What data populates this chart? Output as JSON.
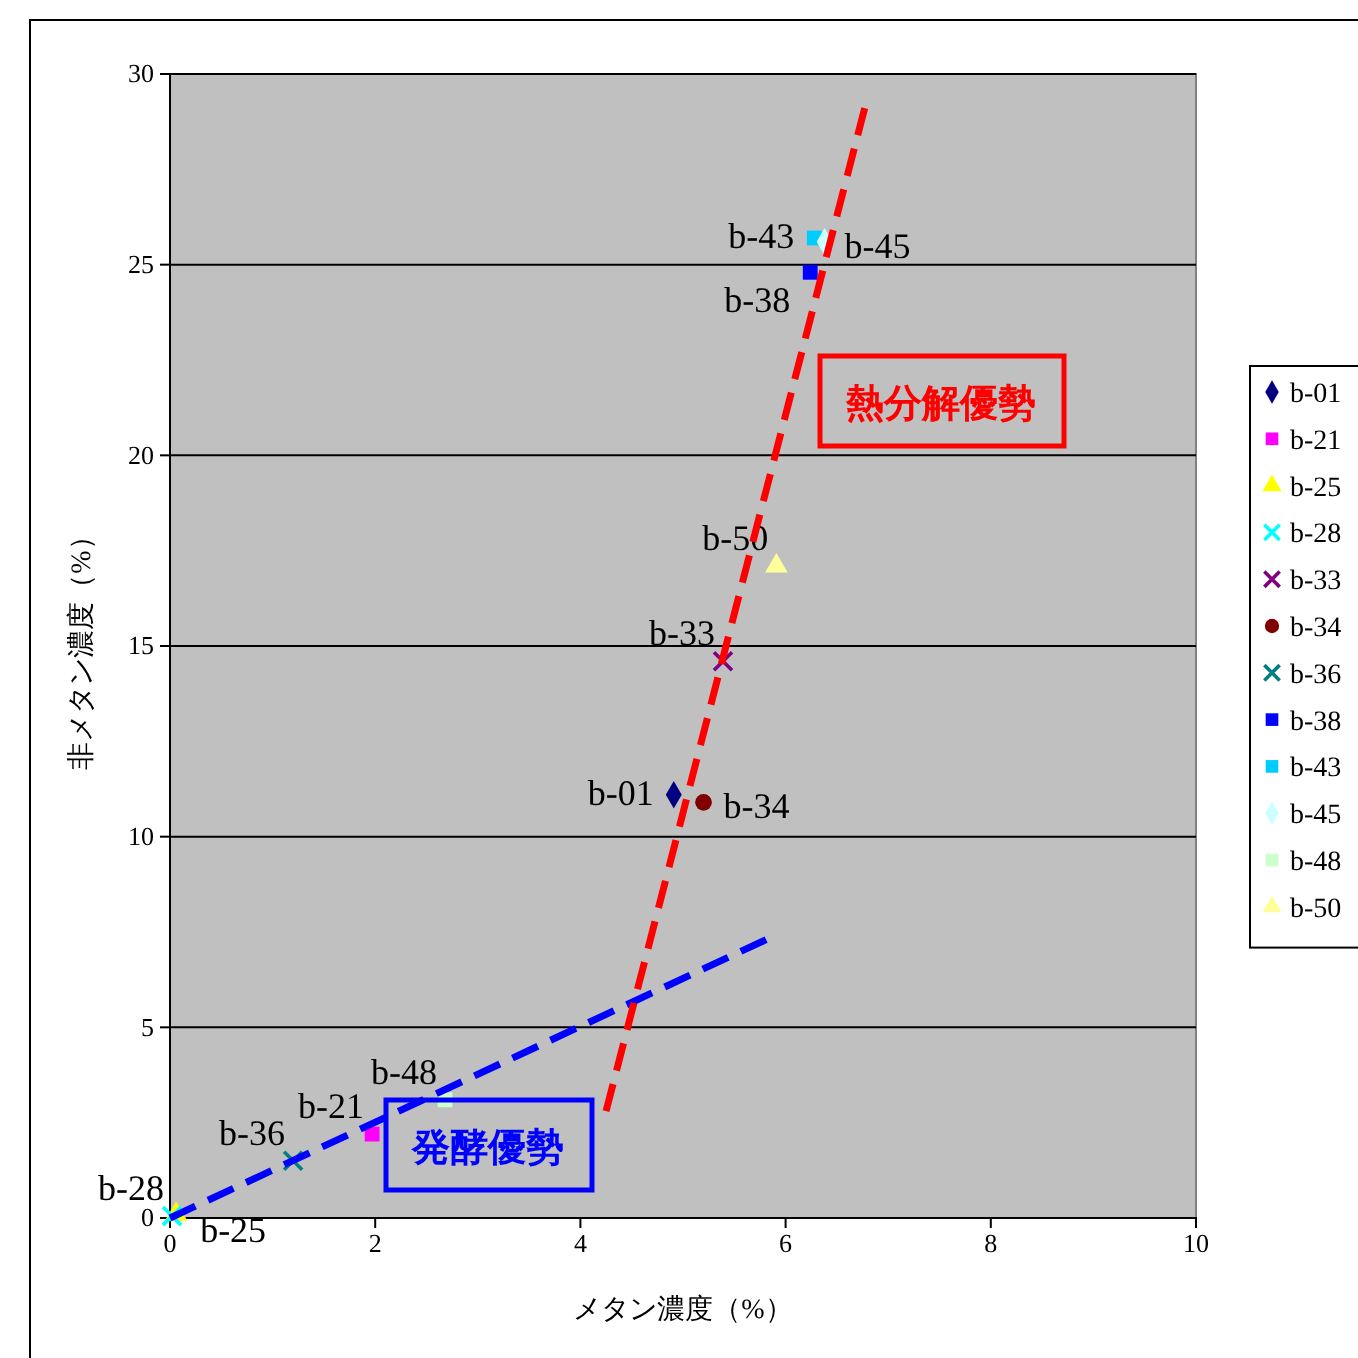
{
  "chart_data": {
    "type": "scatter",
    "xlabel": "メタン濃度（%）",
    "ylabel": "非メタン濃度（%）",
    "xlim": [
      0,
      10
    ],
    "ylim": [
      0,
      30
    ],
    "xticks": [
      0,
      2,
      4,
      6,
      8,
      10
    ],
    "yticks": [
      0,
      5,
      10,
      15,
      20,
      25,
      30
    ],
    "grid": "y",
    "legend": "right",
    "annotations": [
      "熱分解優勢",
      "発酵優勢"
    ],
    "series": [
      {
        "name": "b-01",
        "color": "#000080",
        "marker": "diamond",
        "x": [
          4.91
        ],
        "values": [
          11.1
        ]
      },
      {
        "name": "b-21",
        "color": "#ff00ff",
        "marker": "square",
        "x": [
          1.97
        ],
        "values": [
          2.2
        ]
      },
      {
        "name": "b-25",
        "color": "#ffff00",
        "marker": "triangle",
        "x": [
          0.06
        ],
        "values": [
          0.1
        ]
      },
      {
        "name": "b-28",
        "color": "#00ffff",
        "marker": "cross",
        "x": [
          0.02
        ],
        "values": [
          0.05
        ]
      },
      {
        "name": "b-33",
        "color": "#800080",
        "marker": "cross",
        "x": [
          5.39
        ],
        "values": [
          14.6
        ]
      },
      {
        "name": "b-34",
        "color": "#800000",
        "marker": "circle",
        "x": [
          5.2
        ],
        "values": [
          10.9
        ]
      },
      {
        "name": "b-36",
        "color": "#008080",
        "marker": "cross",
        "x": [
          1.2
        ],
        "values": [
          1.5
        ]
      },
      {
        "name": "b-38",
        "color": "#0000ff",
        "marker": "square",
        "x": [
          6.24
        ],
        "values": [
          24.8
        ]
      },
      {
        "name": "b-43",
        "color": "#00ccff",
        "marker": "square",
        "x": [
          6.28
        ],
        "values": [
          25.7
        ]
      },
      {
        "name": "b-45",
        "color": "#ccffff",
        "marker": "diamond",
        "x": [
          6.38
        ],
        "values": [
          25.6
        ]
      },
      {
        "name": "b-48",
        "color": "#ccffcc",
        "marker": "square",
        "x": [
          2.68
        ],
        "values": [
          3.1
        ]
      },
      {
        "name": "b-50",
        "color": "#ffff99",
        "marker": "triangle",
        "x": [
          5.91
        ],
        "values": [
          17.1
        ]
      },
      {
        "type": "line",
        "color": "#0000ff",
        "line_style": "dashed",
        "marker": "none",
        "x": [
          0,
          5.81
        ],
        "values": [
          0,
          7.3
        ]
      },
      {
        "type": "line",
        "color": "#ff0000",
        "line_style": "dashed",
        "marker": "none",
        "x": [
          4.25,
          6.78
        ],
        "values": [
          2.8,
          29.2
        ]
      }
    ]
  }
}
